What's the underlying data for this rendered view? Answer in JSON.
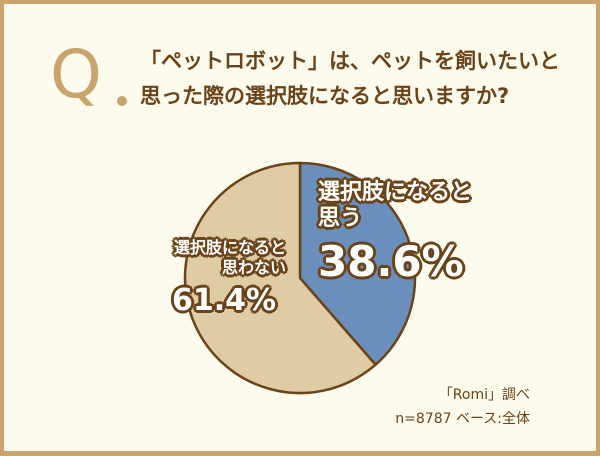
{
  "question": {
    "mark": "Q",
    "text": "「ペットロボット」は、ペットを飼いたいと思った際の選択肢になると思いますか?"
  },
  "chart_data": {
    "type": "pie",
    "categories": [
      "選択肢になると思う",
      "選択肢になると思わない"
    ],
    "values": [
      38.6,
      61.4
    ],
    "labels": [
      "38.6%",
      "61.4%"
    ],
    "colors": [
      "#6b8fbd",
      "#dfcba4"
    ],
    "outline_color": "#6b4318",
    "start": "top",
    "direction": "clockwise"
  },
  "labels": {
    "yes_line1": "選択肢になると",
    "yes_line2": "思う",
    "yes_pct": "38.6%",
    "no_line1": "選択肢になると",
    "no_line2": "思わない",
    "no_pct": "61.4%"
  },
  "source": {
    "line1": "「Romi」調べ",
    "line2": "n=8787 ベース:全体"
  }
}
